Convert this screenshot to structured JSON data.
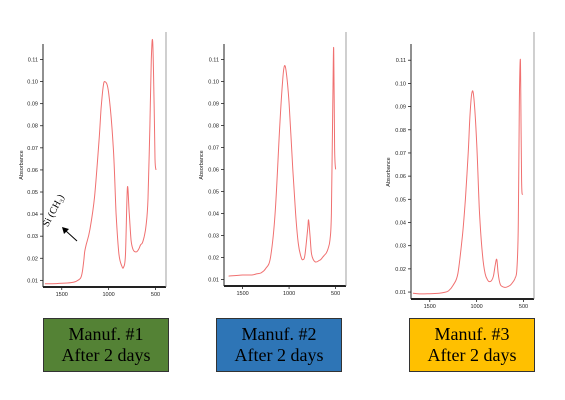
{
  "colors": {
    "curve": "#f07070",
    "axis": "#222222",
    "label_backgrounds": [
      "#548235",
      "#2e75b6",
      "#ffc000"
    ]
  },
  "annotation": {
    "text": "Si (CH₃)",
    "panel": 0,
    "arrow": "pointing up-left toward shoulder near 1250"
  },
  "labels": [
    {
      "line1": "Manuf. #1",
      "line2": "After 2 days"
    },
    {
      "line1": "Manuf. #2",
      "line2": "After 2 days"
    },
    {
      "line1": "Manuf. #3",
      "line2": "After 2 days"
    }
  ],
  "chart_data": [
    {
      "type": "line",
      "ylabel": "Absorbance",
      "xlabel": "",
      "x_reversed": true,
      "xlim": [
        1700,
        420
      ],
      "ylim": [
        0.007,
        0.117
      ],
      "x_ticks": [
        1500,
        1000,
        500
      ],
      "y_ticks": [
        0.01,
        0.02,
        0.03,
        0.04,
        0.05,
        0.06,
        0.07,
        0.08,
        0.09,
        0.1,
        0.11
      ],
      "y_tick_labels": [
        "0.01",
        "0.02",
        "0.03",
        "0.04",
        "0.05",
        "0.06",
        "0.07",
        "0.08",
        "0.09",
        "0.10",
        "0.11"
      ],
      "grid": false,
      "series": [
        {
          "x": [
            1680,
            1600,
            1500,
            1400,
            1350,
            1300,
            1280,
            1265,
            1255,
            1240,
            1200,
            1150,
            1100,
            1080,
            1060,
            1040,
            1000,
            950,
            920,
            890,
            860,
            840,
            820,
            800,
            780,
            760,
            740,
            720,
            700,
            680,
            660,
            640,
            620,
            600,
            580,
            560,
            545,
            530,
            515,
            505,
            495
          ],
          "y": [
            0.0085,
            0.0085,
            0.0087,
            0.009,
            0.0095,
            0.011,
            0.014,
            0.019,
            0.023,
            0.026,
            0.033,
            0.048,
            0.075,
            0.088,
            0.097,
            0.1,
            0.095,
            0.07,
            0.04,
            0.022,
            0.0165,
            0.016,
            0.022,
            0.052,
            0.04,
            0.028,
            0.024,
            0.023,
            0.023,
            0.024,
            0.026,
            0.027,
            0.03,
            0.035,
            0.047,
            0.08,
            0.11,
            0.118,
            0.09,
            0.065,
            0.06
          ]
        }
      ]
    },
    {
      "type": "line",
      "ylabel": "Absorbance",
      "xlabel": "",
      "x_reversed": true,
      "xlim": [
        1700,
        420
      ],
      "ylim": [
        0.007,
        0.117
      ],
      "x_ticks": [
        1500,
        1000,
        500
      ],
      "y_ticks": [
        0.01,
        0.02,
        0.03,
        0.04,
        0.05,
        0.06,
        0.07,
        0.08,
        0.09,
        0.1,
        0.11
      ],
      "y_tick_labels": [
        "0.01",
        "0.02",
        "0.03",
        "0.04",
        "0.05",
        "0.06",
        "0.07",
        "0.08",
        "0.09",
        "0.10",
        "0.11"
      ],
      "grid": false,
      "series": [
        {
          "x": [
            1650,
            1500,
            1400,
            1350,
            1300,
            1250,
            1200,
            1150,
            1100,
            1070,
            1050,
            1030,
            1000,
            960,
            930,
            900,
            870,
            850,
            830,
            800,
            790,
            775,
            760,
            740,
            720,
            700,
            680,
            660,
            640,
            620,
            600,
            580,
            560,
            545,
            530,
            520,
            510,
            500
          ],
          "y": [
            0.0115,
            0.012,
            0.012,
            0.0125,
            0.013,
            0.015,
            0.02,
            0.04,
            0.08,
            0.1,
            0.107,
            0.104,
            0.09,
            0.06,
            0.04,
            0.026,
            0.02,
            0.019,
            0.021,
            0.033,
            0.037,
            0.03,
            0.022,
            0.019,
            0.018,
            0.018,
            0.0185,
            0.019,
            0.02,
            0.021,
            0.022,
            0.024,
            0.028,
            0.04,
            0.09,
            0.115,
            0.07,
            0.06
          ]
        }
      ]
    },
    {
      "type": "line",
      "ylabel": "Absorbance",
      "xlabel": "",
      "x_reversed": true,
      "xlim": [
        1700,
        420
      ],
      "ylim": [
        0.007,
        0.117
      ],
      "x_ticks": [
        1500,
        1000,
        500
      ],
      "y_ticks": [
        0.01,
        0.02,
        0.03,
        0.04,
        0.05,
        0.06,
        0.07,
        0.08,
        0.09,
        0.1,
        0.11
      ],
      "y_tick_labels": [
        "0.01",
        "0.02",
        "0.03",
        "0.04",
        "0.05",
        "0.06",
        "0.07",
        "0.08",
        "0.09",
        "0.10",
        "0.11"
      ],
      "grid": false,
      "series": [
        {
          "x": [
            1680,
            1600,
            1500,
            1400,
            1350,
            1300,
            1250,
            1200,
            1150,
            1120,
            1090,
            1070,
            1050,
            1030,
            1000,
            970,
            940,
            910,
            880,
            860,
            840,
            820,
            800,
            785,
            770,
            750,
            730,
            700,
            670,
            640,
            610,
            590,
            570,
            555,
            545,
            535,
            530,
            520,
            510
          ],
          "y": [
            0.0095,
            0.0092,
            0.0093,
            0.0095,
            0.0098,
            0.0105,
            0.013,
            0.018,
            0.035,
            0.05,
            0.07,
            0.087,
            0.096,
            0.094,
            0.075,
            0.045,
            0.027,
            0.018,
            0.015,
            0.0145,
            0.015,
            0.017,
            0.022,
            0.024,
            0.018,
            0.0135,
            0.0125,
            0.012,
            0.0123,
            0.013,
            0.0145,
            0.016,
            0.02,
            0.04,
            0.09,
            0.11,
            0.1,
            0.058,
            0.052
          ]
        }
      ]
    }
  ]
}
